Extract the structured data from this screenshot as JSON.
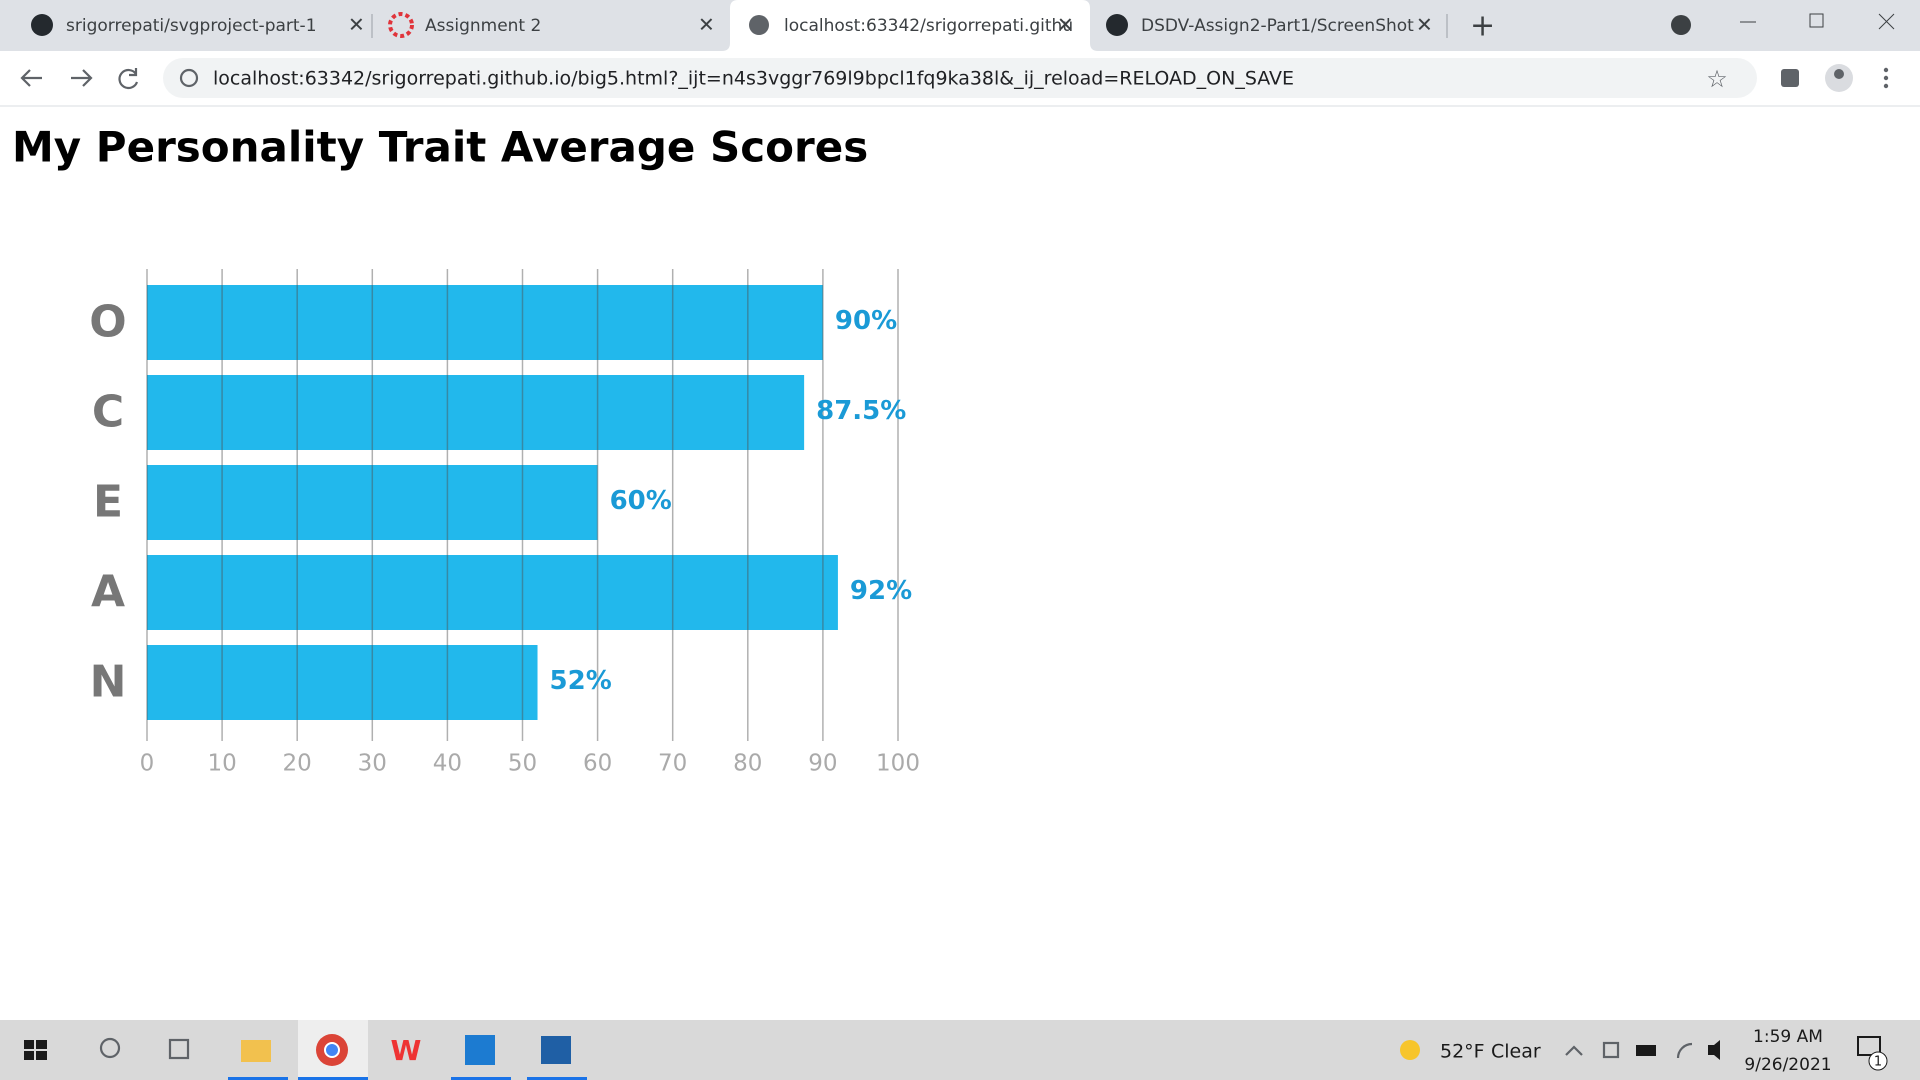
{
  "browser": {
    "tabs": [
      "srigorrepati/svgproject-part-1",
      "Assignment 2",
      "localhost:63342/srigorrepati.githu",
      "DSDV-Assign2-Part1/ScreenShot"
    ],
    "url": "localhost:63342/srigorrepati.github.io/big5.html?_ijt=n4s3vggr769l9bpcl1fq9ka38l&_ij_reload=RELOAD_ON_SAVE"
  },
  "chart_data": {
    "type": "bar",
    "orientation": "horizontal",
    "title": "My Personality Trait Average Scores",
    "categories": [
      "O",
      "C",
      "E",
      "A",
      "N"
    ],
    "values": [
      90,
      87.5,
      60,
      92,
      52
    ],
    "value_labels": [
      "90%",
      "87.5%",
      "60%",
      "92%",
      "52%"
    ],
    "color": "#22b8ec",
    "label_color": "#1a9ad6",
    "xlim": [
      0,
      100
    ],
    "xticks": [
      0,
      10,
      20,
      30,
      40,
      50,
      60,
      70,
      80,
      90,
      100
    ],
    "grid": true
  },
  "taskbar": {
    "weather_temp": "52°F",
    "weather_text": "Clear",
    "time": "1:59 AM",
    "date": "9/26/2021",
    "notifications": "1"
  }
}
